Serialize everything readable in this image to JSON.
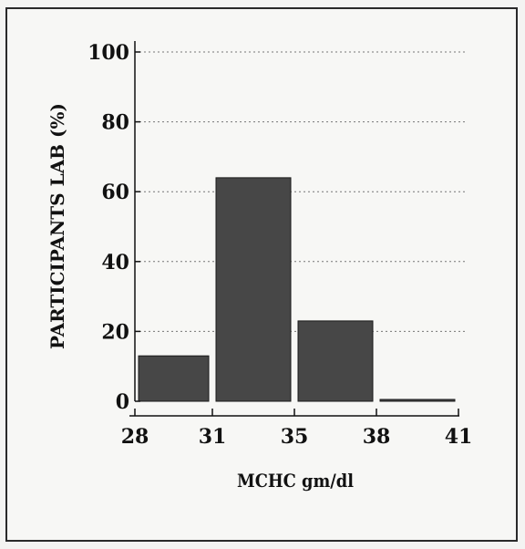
{
  "chart_data": {
    "type": "bar",
    "title": "",
    "xlabel": "MCHC gm/dl",
    "ylabel": "PARTICIPANTS LAB (%)",
    "x_edges": [
      28,
      31,
      35,
      38,
      41
    ],
    "x_tick_labels": [
      "28",
      "31",
      "35",
      "38",
      "41"
    ],
    "y_ticks": [
      0,
      20,
      40,
      60,
      80,
      100
    ],
    "y_tick_labels": [
      "0",
      "20",
      "40",
      "60",
      "80",
      "100"
    ],
    "ylim": [
      0,
      100
    ],
    "grid": true,
    "bins": [
      {
        "from": 28,
        "to": 31,
        "value": 13
      },
      {
        "from": 31,
        "to": 35,
        "value": 64
      },
      {
        "from": 35,
        "to": 38,
        "value": 23
      },
      {
        "from": 38,
        "to": 41,
        "value": 0
      }
    ],
    "bar_color": "#474747"
  }
}
